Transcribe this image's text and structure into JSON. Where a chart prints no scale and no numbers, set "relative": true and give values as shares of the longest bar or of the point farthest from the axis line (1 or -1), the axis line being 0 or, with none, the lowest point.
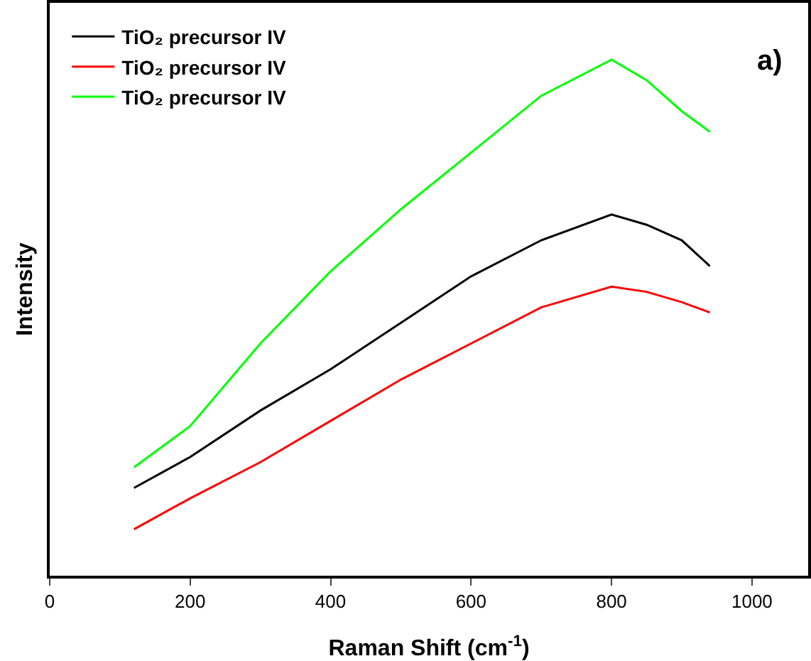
{
  "chart_data": {
    "type": "line",
    "relative": true,
    "xlabel": "Raman Shift (cm$^{-1}$)",
    "ylabel": "Intensity",
    "xlim": [
      0,
      1080
    ],
    "xticks": [
      0,
      200,
      400,
      600,
      800,
      1000
    ],
    "tick_labels": "x",
    "grid": false,
    "legend": "top left",
    "line_style": "solid",
    "marker": "none",
    "annotations": [
      "a)"
    ],
    "x": [
      120,
      200,
      300,
      400,
      500,
      600,
      700,
      800,
      850,
      900,
      940
    ],
    "series": [
      {
        "name": "TiO₂ precursor IV",
        "color": "#000000",
        "values": [
          0.17,
          0.23,
          0.32,
          0.4,
          0.49,
          0.58,
          0.65,
          0.7,
          0.68,
          0.65,
          0.6
        ]
      },
      {
        "name": "TiO₂ precursor IV",
        "color": "#ff0000",
        "values": [
          0.09,
          0.15,
          0.22,
          0.3,
          0.38,
          0.45,
          0.52,
          0.56,
          0.55,
          0.53,
          0.51
        ]
      },
      {
        "name": "TiO₂ precursor IV",
        "color": "#00ff00",
        "values": [
          0.21,
          0.29,
          0.45,
          0.59,
          0.71,
          0.82,
          0.93,
          1.0,
          0.96,
          0.9,
          0.86
        ]
      }
    ]
  }
}
